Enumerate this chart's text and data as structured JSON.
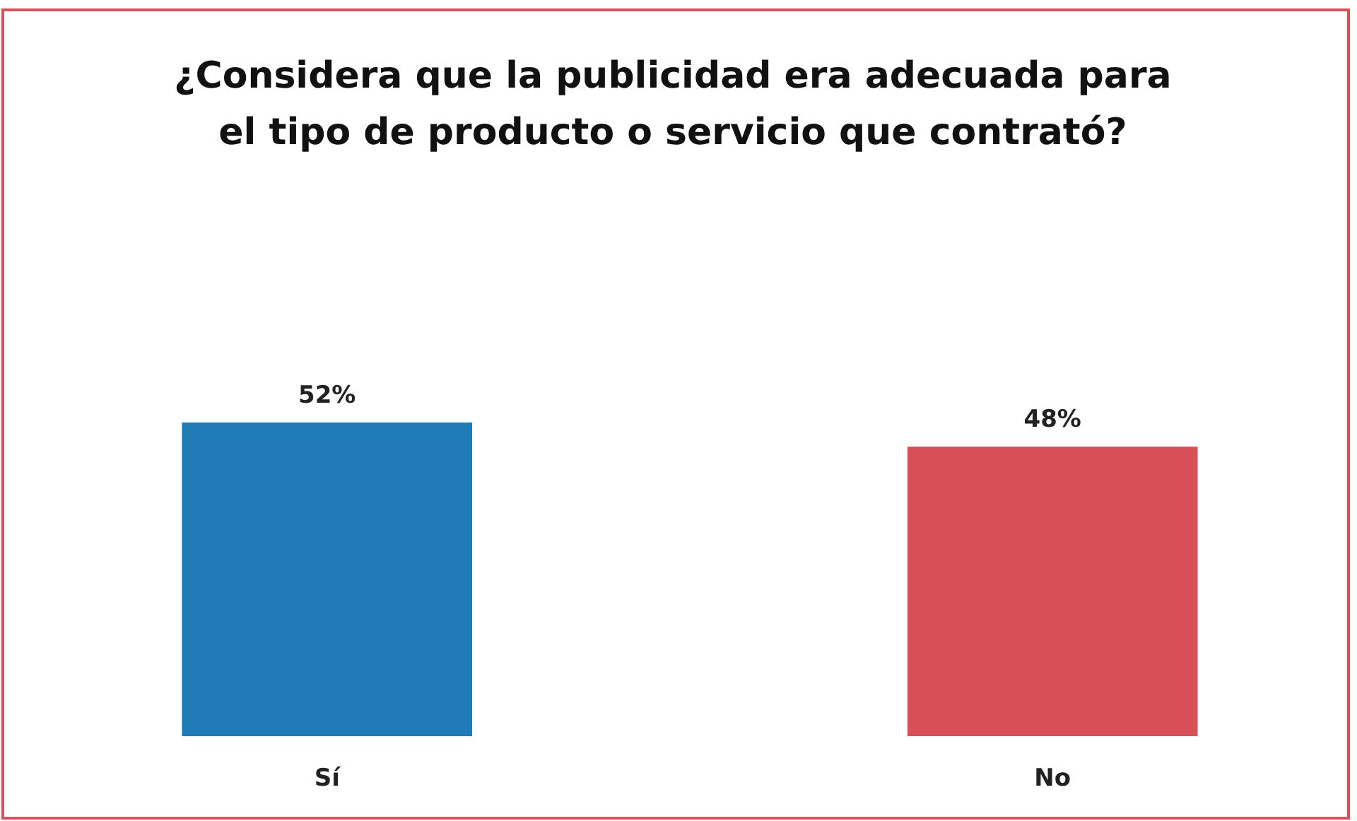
{
  "chart_data": {
    "type": "bar",
    "title": "¿Considera que la publicidad era adecuada para el tipo de producto o servicio que contrató?",
    "categories": [
      "Sí",
      "No"
    ],
    "values": [
      52,
      48
    ],
    "colors": [
      "#1f7bb6",
      "#d94f58"
    ],
    "value_labels": [
      "52%",
      "48%"
    ]
  }
}
